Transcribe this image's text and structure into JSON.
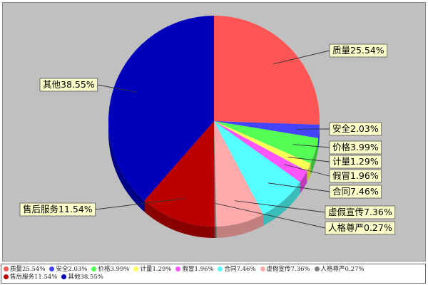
{
  "chart_data": {
    "type": "pie",
    "title": "",
    "style": "3d",
    "slices": [
      {
        "label": "质量",
        "value": 25.54,
        "color": "#ff5555",
        "side": "#c03c3c",
        "callout": "质量25.54%",
        "legend": "质量25.54%"
      },
      {
        "label": "安全",
        "value": 2.03,
        "color": "#4444ff",
        "side": "#2a2ab4",
        "callout": "安全2.03%",
        "legend": "安全2.03%"
      },
      {
        "label": "价格",
        "value": 3.99,
        "color": "#55ff55",
        "side": "#3bbb3b",
        "callout": "价格3.99%",
        "legend": "价格3.99%"
      },
      {
        "label": "计量",
        "value": 1.29,
        "color": "#ffff55",
        "side": "#c4c43c",
        "callout": "计量1.29%",
        "legend": "计量1.29%"
      },
      {
        "label": "假冒",
        "value": 1.96,
        "color": "#ff55ff",
        "side": "#bb3cbb",
        "callout": "假冒1.96%",
        "legend": "假冒1.96%"
      },
      {
        "label": "合同",
        "value": 7.46,
        "color": "#55ffff",
        "side": "#3cbbbb",
        "callout": "合同7.46%",
        "legend": "合同7.46%"
      },
      {
        "label": "虚假宣传",
        "value": 7.36,
        "color": "#ffaaaa",
        "side": "#c08080",
        "callout": "虚假宣传7.36%",
        "legend": "虚假宣传7.36%"
      },
      {
        "label": "人格尊严",
        "value": 0.27,
        "color": "#808080",
        "side": "#555555",
        "callout": "人格尊严0.27%",
        "legend": "人格尊严0.27%"
      },
      {
        "label": "售后服务",
        "value": 11.54,
        "color": "#bb0000",
        "side": "#880000",
        "callout": "售后服务11.54%",
        "legend": "售后服务11.54%"
      },
      {
        "label": "其他",
        "value": 38.55,
        "color": "#0000bb",
        "side": "#000088",
        "callout": "其他38.55%",
        "legend": "其他38.55%"
      }
    ],
    "legend_position": "bottom"
  }
}
